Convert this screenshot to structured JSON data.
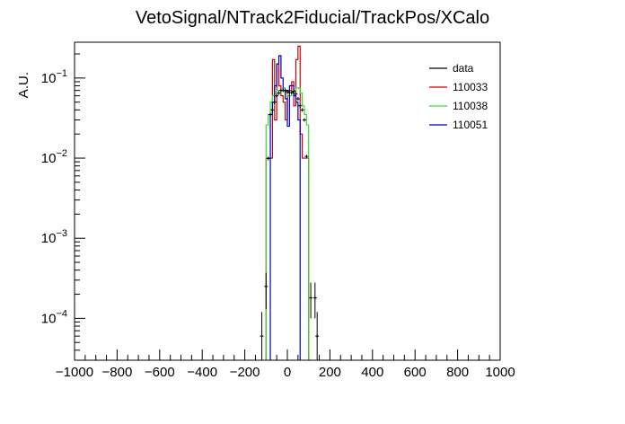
{
  "chart_data": {
    "type": "line",
    "title": "VetoSignal/NTrack2Fiducial/TrackPos/XCalo",
    "xlabel": "",
    "ylabel": "A.U.",
    "xlim": [
      -1000,
      1000
    ],
    "ylim": [
      3e-05,
      0.28
    ],
    "yscale": "log",
    "grid": false,
    "legend_position": "top-right",
    "x_ticks": [
      -1000,
      -800,
      -600,
      -400,
      -200,
      0,
      200,
      400,
      600,
      800,
      1000
    ],
    "x_tick_labels": [
      "−1000",
      "−800",
      "−600",
      "−400",
      "−200",
      "0",
      "200",
      "400",
      "600",
      "800",
      "1000"
    ],
    "y_ticks": [
      {
        "base": "10",
        "exp": "−4",
        "value": 0.0001
      },
      {
        "base": "10",
        "exp": "−3",
        "value": 0.001
      },
      {
        "base": "10",
        "exp": "−2",
        "value": 0.01
      },
      {
        "base": "10",
        "exp": "−1",
        "value": 0.1
      }
    ],
    "series": [
      {
        "name": "data",
        "color": "#000000",
        "style": "points",
        "points": [
          {
            "x": -120,
            "y": 6e-05,
            "lo": 3e-05,
            "hi": 0.00012
          },
          {
            "x": -100,
            "y": 0.00025,
            "lo": 0.00013,
            "hi": 0.00037
          },
          {
            "x": -90,
            "y": 0.0099
          },
          {
            "x": -80,
            "y": 0.035
          },
          {
            "x": -70,
            "y": 0.04
          },
          {
            "x": -60,
            "y": 0.05
          },
          {
            "x": -50,
            "y": 0.06
          },
          {
            "x": -40,
            "y": 0.065
          },
          {
            "x": -30,
            "y": 0.07
          },
          {
            "x": -20,
            "y": 0.07
          },
          {
            "x": -10,
            "y": 0.07
          },
          {
            "x": 0,
            "y": 0.068
          },
          {
            "x": 10,
            "y": 0.066
          },
          {
            "x": 20,
            "y": 0.066
          },
          {
            "x": 30,
            "y": 0.068
          },
          {
            "x": 40,
            "y": 0.063
          },
          {
            "x": 50,
            "y": 0.055
          },
          {
            "x": 60,
            "y": 0.045
          },
          {
            "x": 70,
            "y": 0.04
          },
          {
            "x": 80,
            "y": 0.03
          },
          {
            "x": 90,
            "y": 0.0105
          },
          {
            "x": 110,
            "y": 0.00018,
            "lo": 0.0001,
            "hi": 0.00028
          },
          {
            "x": 130,
            "y": 0.00018,
            "lo": 0.0001,
            "hi": 0.00028
          },
          {
            "x": 140,
            "y": 6e-05,
            "lo": 3e-05,
            "hi": 0.00012
          }
        ]
      },
      {
        "name": "110033",
        "color": "#cc0000",
        "style": "step",
        "bins": [
          {
            "x0": -100,
            "x1": -70,
            "y": 0.01
          },
          {
            "x0": -70,
            "x1": -60,
            "y": 0.17
          },
          {
            "x0": -60,
            "x1": -50,
            "y": 0.03
          },
          {
            "x0": -50,
            "x1": -40,
            "y": 0.15
          },
          {
            "x0": -40,
            "x1": -30,
            "y": 0.08
          },
          {
            "x0": -30,
            "x1": -20,
            "y": 0.06
          },
          {
            "x0": -20,
            "x1": -10,
            "y": 0.05
          },
          {
            "x0": -10,
            "x1": 0,
            "y": 0.03
          },
          {
            "x0": 0,
            "x1": 10,
            "y": 0.07
          },
          {
            "x0": 10,
            "x1": 20,
            "y": 0.07
          },
          {
            "x0": 20,
            "x1": 30,
            "y": 0.09
          },
          {
            "x0": 30,
            "x1": 40,
            "y": 0.045
          },
          {
            "x0": 40,
            "x1": 50,
            "y": 0.17
          },
          {
            "x0": 50,
            "x1": 60,
            "y": 0.25
          },
          {
            "x0": 60,
            "x1": 70,
            "y": 0.02
          },
          {
            "x0": 70,
            "x1": 100,
            "y": 0.01
          }
        ]
      },
      {
        "name": "110038",
        "color": "#33dd33",
        "style": "step",
        "bins": [
          {
            "x0": -100,
            "x1": -90,
            "y": 0.026
          },
          {
            "x0": -90,
            "x1": -80,
            "y": 0.035
          },
          {
            "x0": -80,
            "x1": -70,
            "y": 0.05
          },
          {
            "x0": -70,
            "x1": -60,
            "y": 0.06
          },
          {
            "x0": -60,
            "x1": -50,
            "y": 0.065
          },
          {
            "x0": -50,
            "x1": -40,
            "y": 0.07
          },
          {
            "x0": -40,
            "x1": -30,
            "y": 0.065
          },
          {
            "x0": -30,
            "x1": -20,
            "y": 0.07
          },
          {
            "x0": -20,
            "x1": -10,
            "y": 0.075
          },
          {
            "x0": -10,
            "x1": 0,
            "y": 0.065
          },
          {
            "x0": 0,
            "x1": 10,
            "y": 0.06
          },
          {
            "x0": 10,
            "x1": 20,
            "y": 0.06
          },
          {
            "x0": 20,
            "x1": 30,
            "y": 0.065
          },
          {
            "x0": 30,
            "x1": 40,
            "y": 0.07
          },
          {
            "x0": 40,
            "x1": 50,
            "y": 0.075
          },
          {
            "x0": 50,
            "x1": 60,
            "y": 0.075
          },
          {
            "x0": 60,
            "x1": 70,
            "y": 0.065
          },
          {
            "x0": 70,
            "x1": 80,
            "y": 0.045
          },
          {
            "x0": 80,
            "x1": 90,
            "y": 0.035
          },
          {
            "x0": 90,
            "x1": 100,
            "y": 0.026
          }
        ]
      },
      {
        "name": "110051",
        "color": "#0000bb",
        "style": "step",
        "bins": [
          {
            "x0": -80,
            "x1": -70,
            "y": 0.035
          },
          {
            "x0": -70,
            "x1": -60,
            "y": 0.05
          },
          {
            "x0": -60,
            "x1": -50,
            "y": 0.08
          },
          {
            "x0": -50,
            "x1": -40,
            "y": 0.15
          },
          {
            "x0": -40,
            "x1": -30,
            "y": 0.19
          },
          {
            "x0": -30,
            "x1": -20,
            "y": 0.1
          },
          {
            "x0": -20,
            "x1": -10,
            "y": 0.07
          },
          {
            "x0": -10,
            "x1": 0,
            "y": 0.055
          },
          {
            "x0": 0,
            "x1": 10,
            "y": 0.025
          },
          {
            "x0": 10,
            "x1": 20,
            "y": 0.08
          },
          {
            "x0": 20,
            "x1": 30,
            "y": 0.08
          },
          {
            "x0": 30,
            "x1": 40,
            "y": 0.06
          },
          {
            "x0": 40,
            "x1": 50,
            "y": 0.05
          },
          {
            "x0": 50,
            "x1": 60,
            "y": 0.03
          }
        ]
      }
    ]
  }
}
